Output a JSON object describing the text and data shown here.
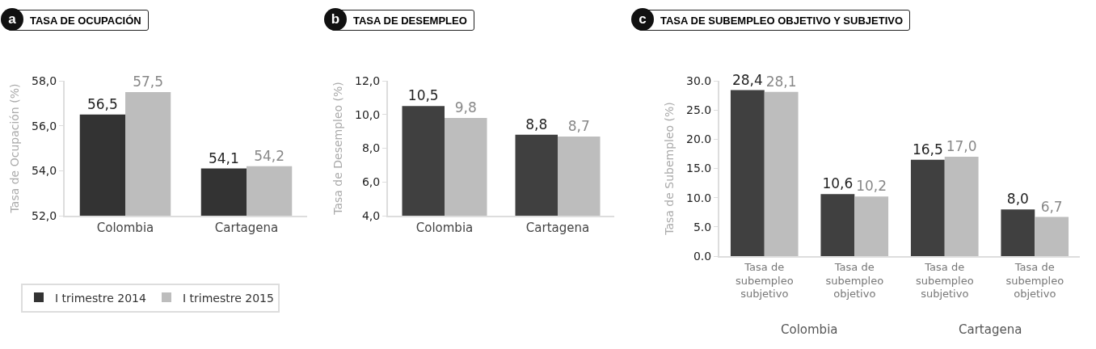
{
  "chart_data": [
    {
      "type": "bar",
      "title": "TASA DE OCUPACIÓN",
      "annotations": [
        "a"
      ],
      "ylabel": "Tasa de Ocupación (%)",
      "categories": [
        "Colombia",
        "Cartagena"
      ],
      "legend": "bottom",
      "ylim": [
        52,
        58
      ],
      "yticks": [
        {
          "value": 52,
          "label": "52,0"
        },
        {
          "value": 54,
          "label": "54,0"
        },
        {
          "value": 56,
          "label": "56,0"
        },
        {
          "value": 58,
          "label": "58,0"
        }
      ],
      "series": [
        {
          "name": "I trimestre 2014",
          "color": "#333333",
          "values": [
            56.5,
            54.1
          ],
          "value_labels": [
            "56,5",
            "54,1"
          ]
        },
        {
          "name": "I trimestre 2015",
          "color": "#bdbdbd",
          "values": [
            57.5,
            54.2
          ],
          "value_labels": [
            "57,5",
            "54,2"
          ]
        }
      ]
    },
    {
      "type": "bar",
      "title": "TASA DE DESEMPLEO",
      "annotations": [
        "b"
      ],
      "ylabel": "Tasa de Desempleo (%)",
      "categories": [
        "Colombia",
        "Cartagena"
      ],
      "ylim": [
        4,
        12
      ],
      "yticks": [
        {
          "value": 4,
          "label": "4,0"
        },
        {
          "value": 6,
          "label": "6,0"
        },
        {
          "value": 8,
          "label": "8,0"
        },
        {
          "value": 10,
          "label": "10,0"
        },
        {
          "value": 12,
          "label": "12,0"
        }
      ],
      "series": [
        {
          "color": "#404040",
          "values": [
            10.5,
            8.8
          ],
          "value_labels": [
            "10,5",
            "8,8"
          ]
        },
        {
          "color": "#bdbdbd",
          "values": [
            9.8,
            8.7
          ],
          "value_labels": [
            "9,8",
            "8,7"
          ]
        }
      ]
    },
    {
      "type": "bar",
      "title": "TASA DE SUBEMPLEO OBJETIVO Y SUBJETIVO",
      "annotations": [
        "c",
        "Colombia",
        "Cartagena"
      ],
      "ylabel": "Tasa de Subempleo (%)",
      "categories": [
        "Tasa de subempleo subjetivo",
        "Tasa de subempleo objetivo",
        "Tasa de subempleo subjetivo",
        "Tasa de subempleo objetivo"
      ],
      "ylim": [
        0,
        30
      ],
      "yticks": [
        {
          "value": 0,
          "label": "0.0"
        },
        {
          "value": 5,
          "label": "5.0"
        },
        {
          "value": 10,
          "label": "10.0"
        },
        {
          "value": 15,
          "label": "15.0"
        },
        {
          "value": 20,
          "label": "20.0"
        },
        {
          "value": 25,
          "label": "25.0"
        },
        {
          "value": 30,
          "label": "30.0"
        }
      ],
      "series": [
        {
          "color": "#404040",
          "values": [
            28.4,
            10.6,
            16.5,
            8.0
          ],
          "value_labels": [
            "28,4",
            "10,6",
            "16,5",
            "8,0"
          ]
        },
        {
          "color": "#bdbdbd",
          "values": [
            28.1,
            10.2,
            17.0,
            6.7
          ],
          "value_labels": [
            "28,1",
            "10,2",
            "17,0",
            "6,7"
          ]
        }
      ]
    }
  ]
}
